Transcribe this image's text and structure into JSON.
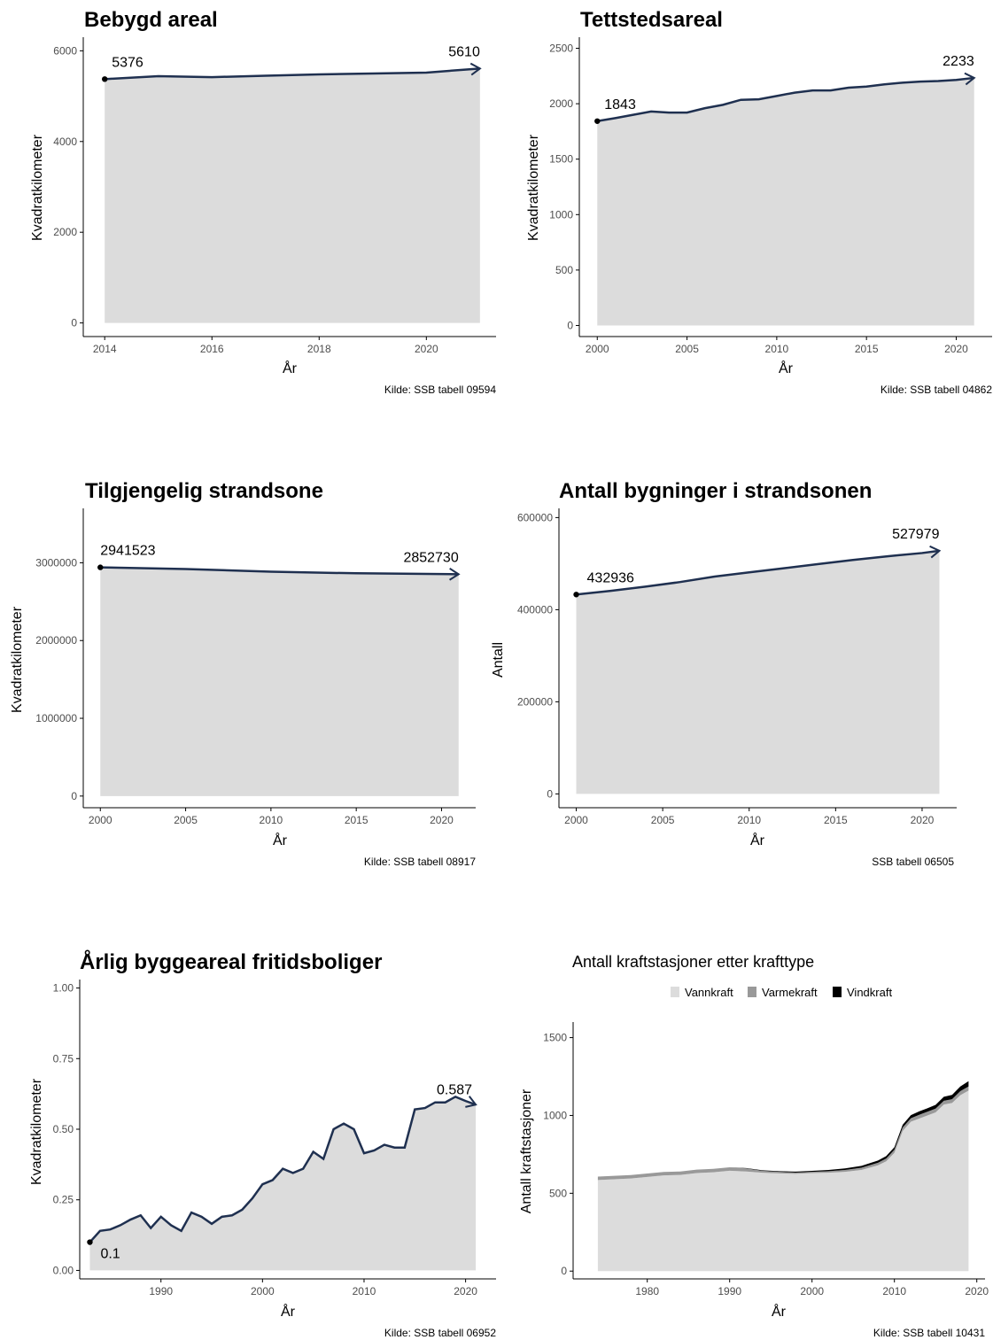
{
  "colors": {
    "area": "#dcdcdc",
    "line": "#1f3050",
    "axis": "#000000",
    "tick_text": "#4d4d4d"
  },
  "chart_data": [
    {
      "type": "area",
      "title": "Bebygd areal",
      "xlabel": "År",
      "ylabel": "Kvadratkilometer",
      "source": "Kilde: SSB tabell 09594",
      "x": [
        2014,
        2015,
        2016,
        2017,
        2018,
        2019,
        2020,
        2021
      ],
      "y": [
        5376,
        5440,
        5420,
        5450,
        5480,
        5500,
        5520,
        5610
      ],
      "xlim": [
        2013.6,
        2021.3
      ],
      "ylim": [
        -300,
        6300
      ],
      "xticks": [
        2014,
        2016,
        2018,
        2020
      ],
      "yticks": [
        0,
        2000,
        4000,
        6000
      ],
      "labels": {
        "first": "5376",
        "last": "5610"
      },
      "grid": false
    },
    {
      "type": "area",
      "title": "Tettstedsareal",
      "xlabel": "År",
      "ylabel": "Kvadratkilometer",
      "source": "Kilde: SSB tabell 04862",
      "x": [
        2000,
        2001,
        2002,
        2003,
        2004,
        2005,
        2006,
        2007,
        2008,
        2009,
        2010,
        2011,
        2012,
        2013,
        2014,
        2015,
        2016,
        2017,
        2018,
        2019,
        2020,
        2021
      ],
      "y": [
        1843,
        1870,
        1900,
        1930,
        1920,
        1920,
        1960,
        1990,
        2035,
        2040,
        2070,
        2100,
        2120,
        2120,
        2145,
        2155,
        2175,
        2190,
        2200,
        2205,
        2215,
        2233
      ],
      "xlim": [
        1999,
        2022
      ],
      "ylim": [
        -100,
        2600
      ],
      "xticks": [
        2000,
        2005,
        2010,
        2015,
        2020
      ],
      "yticks": [
        0,
        500,
        1000,
        1500,
        2000,
        2500
      ],
      "labels": {
        "first": "1843",
        "last": "2233"
      },
      "grid": false
    },
    {
      "type": "area",
      "title": "Tilgjengelig strandsone",
      "xlabel": "År",
      "ylabel": "Kvadratkilometer",
      "source": "Kilde: SSB tabell 08917",
      "x": [
        2000,
        2005,
        2010,
        2015,
        2021
      ],
      "y": [
        2941523,
        2920000,
        2885000,
        2865000,
        2852730
      ],
      "xlim": [
        1999,
        2022
      ],
      "ylim": [
        -150000,
        3700000
      ],
      "xticks": [
        2000,
        2005,
        2010,
        2015,
        2020
      ],
      "yticks": [
        0,
        1000000,
        2000000,
        3000000
      ],
      "labels": {
        "first": "2941523",
        "last": "2852730"
      },
      "grid": false
    },
    {
      "type": "area",
      "title": "Antall bygninger i strandsonen",
      "xlabel": "År",
      "ylabel": "Antall",
      "source": "SSB tabell 06505",
      "x": [
        2000,
        2002,
        2004,
        2006,
        2008,
        2010,
        2012,
        2014,
        2016,
        2018,
        2020,
        2021
      ],
      "y": [
        432936,
        441000,
        450000,
        460000,
        472000,
        481000,
        490000,
        499000,
        508000,
        516000,
        523000,
        527979
      ],
      "xlim": [
        1999,
        2022
      ],
      "ylim": [
        -30000,
        620000
      ],
      "xticks": [
        2000,
        2005,
        2010,
        2015,
        2020
      ],
      "yticks": [
        0,
        200000,
        400000,
        600000
      ],
      "labels": {
        "first": "432936",
        "last": "527979"
      },
      "grid": false
    },
    {
      "type": "area",
      "title": "Årlig byggeareal fritidsboliger",
      "xlabel": "År",
      "ylabel": "Kvadratkilometer",
      "source": "Kilde: SSB tabell 06952",
      "x": [
        1983,
        1984,
        1985,
        1986,
        1987,
        1988,
        1989,
        1990,
        1991,
        1992,
        1993,
        1994,
        1995,
        1996,
        1997,
        1998,
        1999,
        2000,
        2001,
        2002,
        2003,
        2004,
        2005,
        2006,
        2007,
        2008,
        2009,
        2010,
        2011,
        2012,
        2013,
        2014,
        2015,
        2016,
        2017,
        2018,
        2019,
        2020,
        2021
      ],
      "y": [
        0.1,
        0.14,
        0.145,
        0.16,
        0.18,
        0.195,
        0.15,
        0.19,
        0.16,
        0.14,
        0.205,
        0.19,
        0.165,
        0.19,
        0.195,
        0.215,
        0.255,
        0.305,
        0.32,
        0.36,
        0.345,
        0.36,
        0.42,
        0.395,
        0.5,
        0.52,
        0.5,
        0.415,
        0.425,
        0.445,
        0.435,
        0.435,
        0.57,
        0.575,
        0.595,
        0.595,
        0.615,
        0.6,
        0.587
      ],
      "xlim": [
        1982,
        2023
      ],
      "ylim": [
        -0.03,
        1.03
      ],
      "xticks": [
        1990,
        2000,
        2010,
        2020
      ],
      "ytick_labels": [
        "0.00",
        "0.25",
        "0.50",
        "0.75",
        "1.00"
      ],
      "labels": {
        "first": "0.1",
        "last": "0.587"
      },
      "grid": false
    },
    {
      "type": "area",
      "stacked": true,
      "title": "Antall kraftstasjoner etter krafttype",
      "xlabel": "År",
      "ylabel": "Antall kraftstasjoner",
      "source": "Kilde: SSB tabell 10431",
      "legend_position": "top",
      "x": [
        1974,
        1976,
        1978,
        1980,
        1982,
        1984,
        1986,
        1988,
        1990,
        1992,
        1994,
        1996,
        1998,
        2000,
        2002,
        2004,
        2006,
        2008,
        2009,
        2010,
        2011,
        2012,
        2013,
        2014,
        2015,
        2016,
        2017,
        2018,
        2019
      ],
      "series": [
        {
          "name": "Vannkraft",
          "color": "#dcdcdc",
          "values": [
            585,
            590,
            595,
            605,
            615,
            618,
            630,
            635,
            645,
            640,
            632,
            628,
            625,
            630,
            632,
            638,
            650,
            680,
            705,
            760,
            900,
            960,
            980,
            1000,
            1020,
            1070,
            1080,
            1130,
            1160
          ]
        },
        {
          "name": "Varmekraft",
          "color": "#999999",
          "values": [
            22,
            22,
            22,
            22,
            22,
            22,
            22,
            22,
            22,
            20,
            12,
            10,
            8,
            8,
            10,
            12,
            14,
            16,
            18,
            20,
            22,
            22,
            24,
            24,
            24,
            24,
            24,
            26,
            26
          ]
        },
        {
          "name": "Vindkraft",
          "color": "#000000",
          "values": [
            0,
            0,
            0,
            0,
            0,
            0,
            0,
            0,
            0,
            2,
            4,
            4,
            6,
            6,
            8,
            10,
            12,
            14,
            16,
            16,
            18,
            20,
            22,
            22,
            24,
            26,
            28,
            30,
            34
          ]
        }
      ],
      "xlim": [
        1971,
        2021
      ],
      "ylim": [
        -50,
        1600
      ],
      "xticks": [
        1980,
        1990,
        2000,
        2010,
        2020
      ],
      "yticks": [
        0,
        500,
        1000,
        1500
      ],
      "grid": false
    }
  ]
}
